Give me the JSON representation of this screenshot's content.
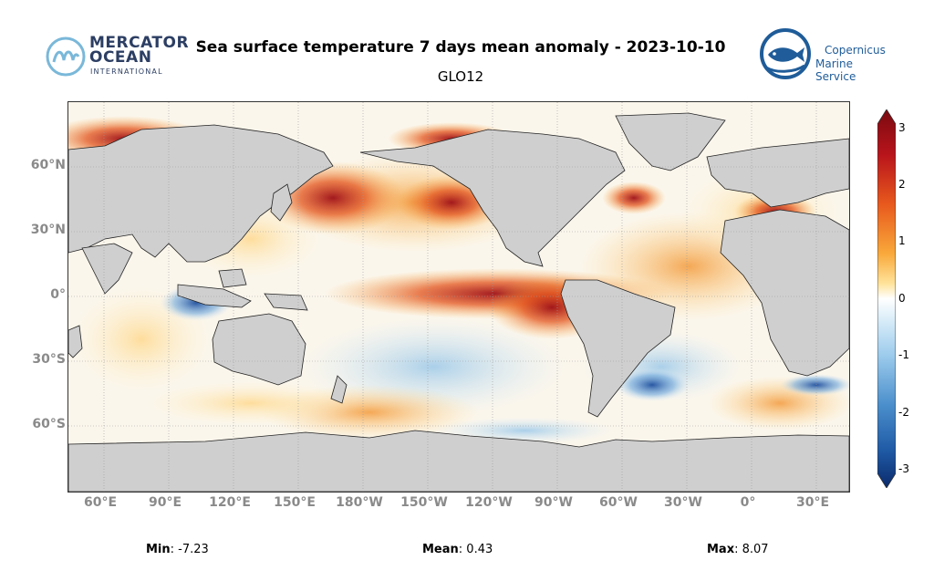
{
  "header": {
    "title": "Sea surface temperature 7 days mean anomaly - 2023-10-10",
    "subtitle": "GLO12"
  },
  "logos": {
    "mercator": {
      "line1": "MERCATOR",
      "line2": "OCEAN",
      "line3": "INTERNATIONAL",
      "color": "#2c3e63"
    },
    "copernicus": {
      "line1": "Copernicus",
      "line2": "Marine Service",
      "color": "#1f5c99"
    }
  },
  "map": {
    "projection": "equirectangular, central meridian 180",
    "lat_labels": [
      "60°N",
      "30°N",
      "0°",
      "30°S",
      "60°S"
    ],
    "lon_labels": [
      "60°E",
      "90°E",
      "120°E",
      "150°E",
      "180°W",
      "150°W",
      "120°W",
      "90°W",
      "60°W",
      "30°W",
      "0°",
      "30°E"
    ],
    "land_color": "#cfcfcf",
    "grid": true
  },
  "colorbar": {
    "ticks": [
      "3",
      "2",
      "1",
      "0",
      "-1",
      "-2",
      "-3"
    ],
    "range": [
      -3,
      3
    ],
    "colors": [
      "#0b2a6b",
      "#1f5aa6",
      "#4b8fcc",
      "#9ccbec",
      "#ffffff",
      "#ffe39a",
      "#f9a83a",
      "#e8591d",
      "#b8141b",
      "#7a0a10"
    ]
  },
  "stats": {
    "min_label": "Min",
    "min_value": ": -7.23",
    "mean_label": "Mean",
    "mean_value": ": 0.43",
    "max_label": "Max",
    "max_value": ": 8.07"
  }
}
